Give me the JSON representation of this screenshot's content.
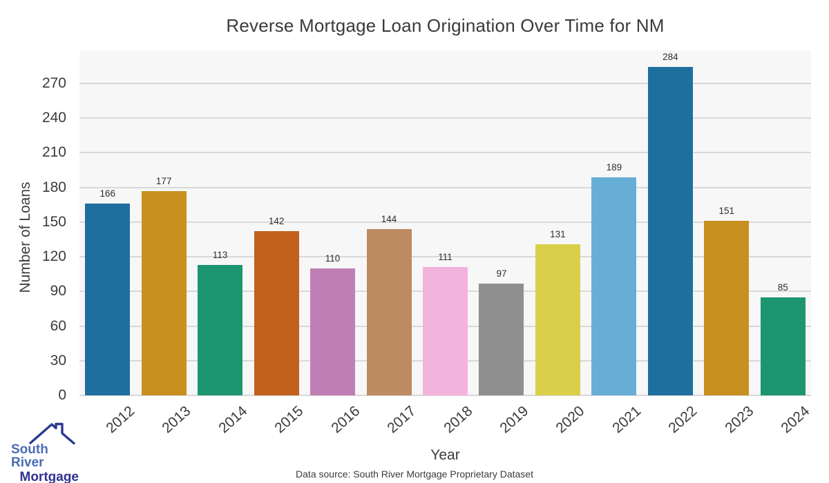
{
  "chart_data": {
    "type": "bar",
    "title": "Reverse Mortgage Loan Origination Over Time for NM",
    "xlabel": "Year",
    "ylabel": "Number of Loans",
    "categories": [
      "2012",
      "2013",
      "2014",
      "2015",
      "2016",
      "2017",
      "2018",
      "2019",
      "2020",
      "2021",
      "2022",
      "2023",
      "2024"
    ],
    "values": [
      166,
      177,
      113,
      142,
      110,
      144,
      111,
      97,
      131,
      189,
      284,
      151,
      85
    ],
    "bar_colors": [
      "#1e6f9e",
      "#c8901f",
      "#1c9571",
      "#c2601e",
      "#c07fb4",
      "#bc8b62",
      "#f2b3dc",
      "#8f8f8f",
      "#d9d04a",
      "#67aed6",
      "#1e6f9e",
      "#c8901f",
      "#1c9571"
    ],
    "yticks": [
      0,
      30,
      60,
      90,
      120,
      150,
      180,
      210,
      240,
      270
    ],
    "ylim": [
      0,
      298.6
    ],
    "grid": "horizontal",
    "legend": "none",
    "plot_bg": "#f7f7f7",
    "grid_color": "#d8d8d8"
  },
  "footer": {
    "text": "Data source: South River Mortgage Proprietary Dataset"
  },
  "logo": {
    "line1": "South River",
    "line2": "Mortgage",
    "line1_color": "#4a6cb3",
    "line2_color": "#2e3192",
    "roof_color": "#2c3a8e"
  }
}
